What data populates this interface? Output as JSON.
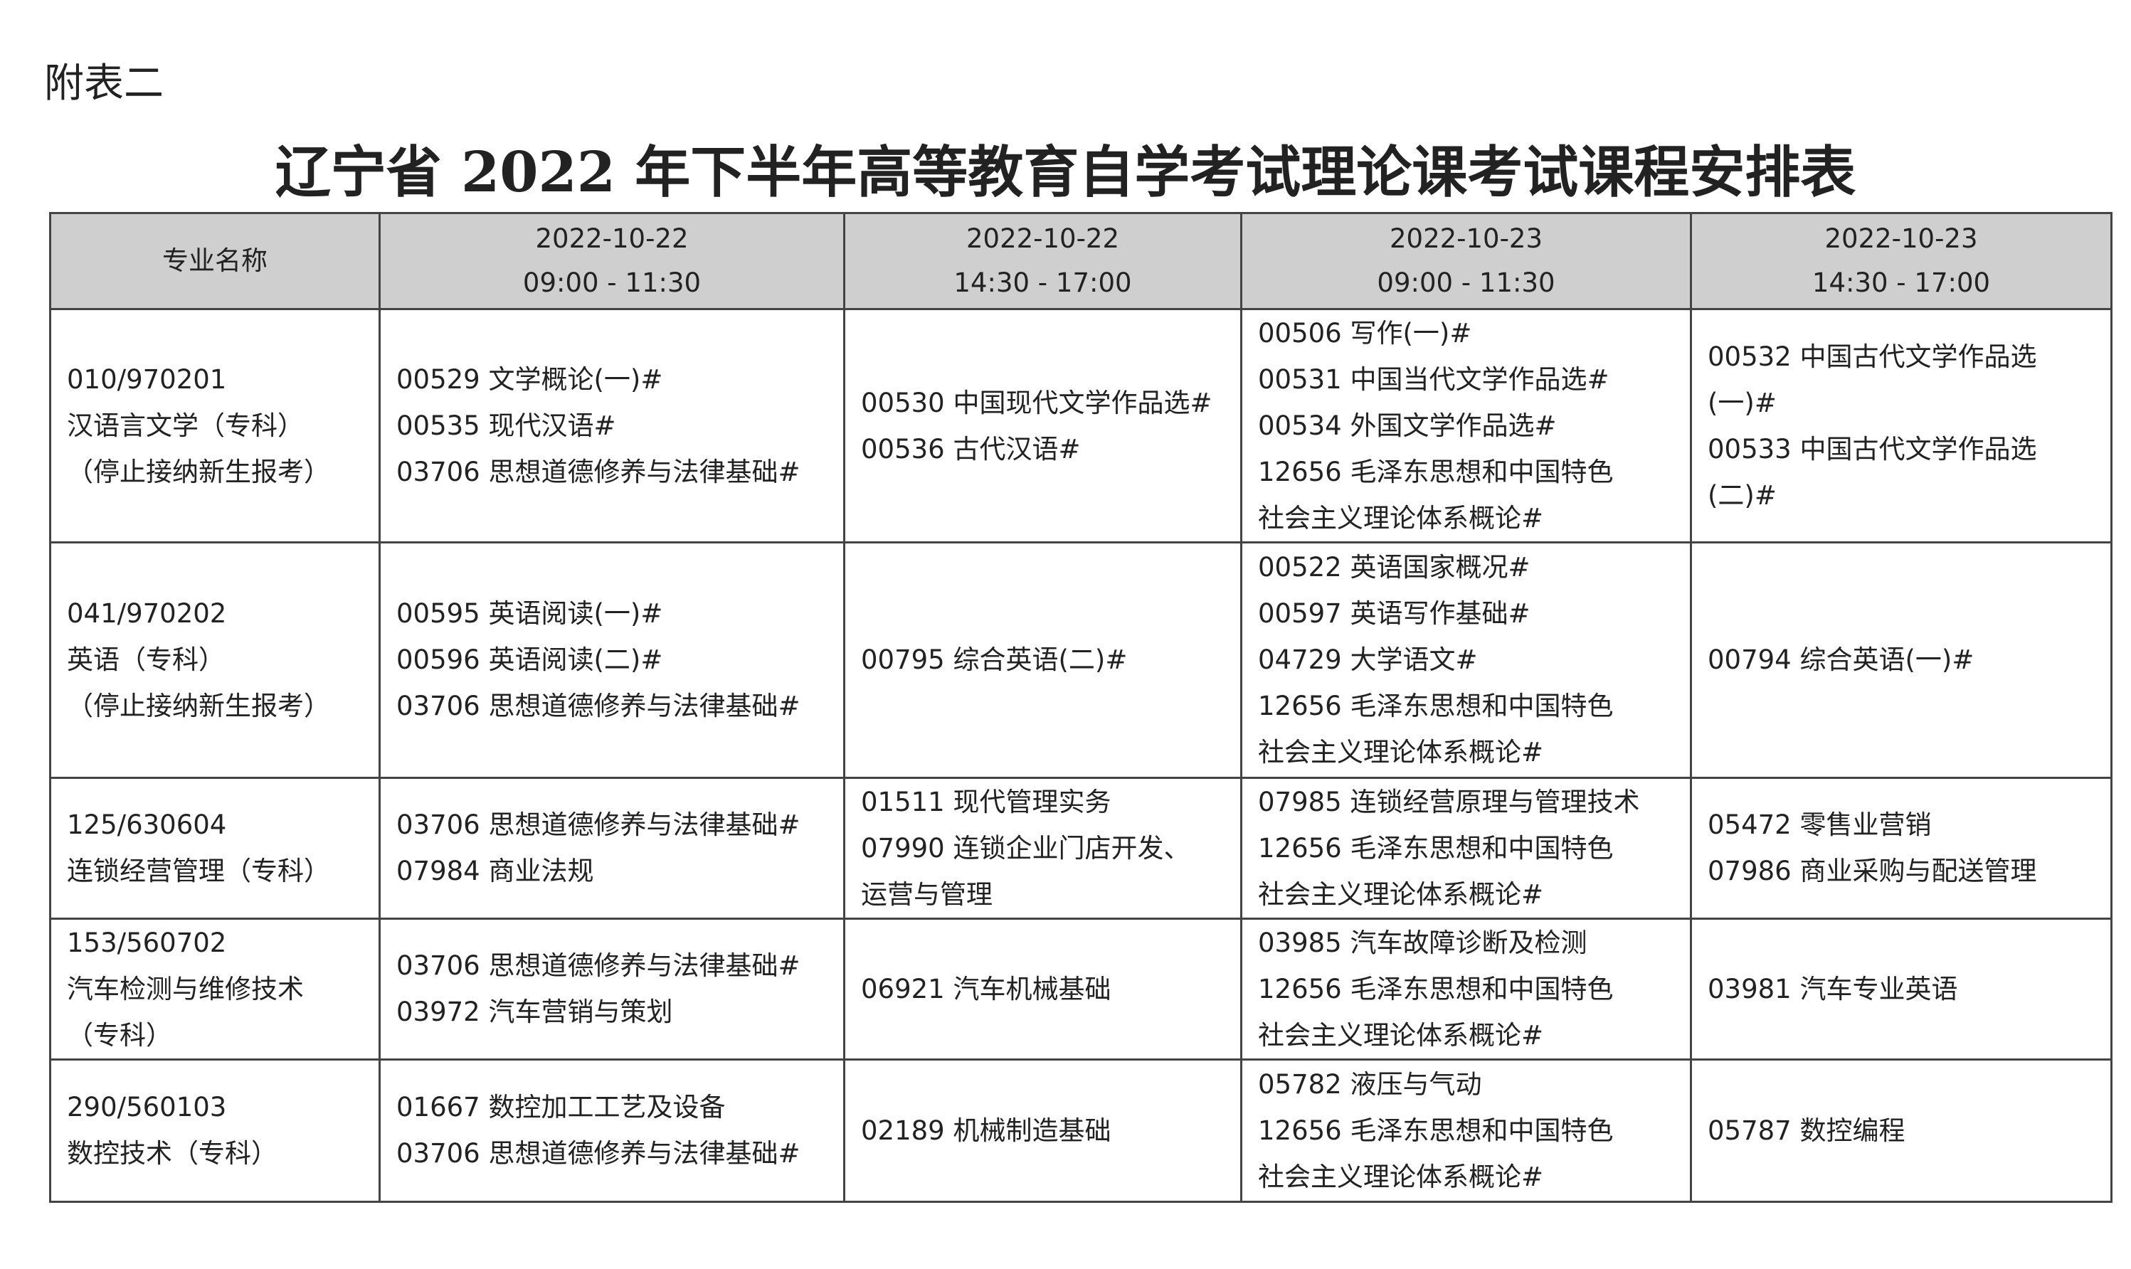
{
  "label": "附表二",
  "title": "辽宁省 2022 年下半年高等教育自学考试理论课考试课程安排表",
  "table": {
    "header": [
      [
        "专业名称"
      ],
      [
        "2022-10-22",
        "09:00 - 11:30"
      ],
      [
        "2022-10-22",
        "14:30 - 17:00"
      ],
      [
        "2022-10-23",
        "09:00 - 11:30"
      ],
      [
        "2022-10-23",
        "14:30 - 17:00"
      ]
    ],
    "rows": [
      [
        [
          "010/970201",
          "汉语言文学（专科）",
          "（停止接纳新生报考）"
        ],
        [
          "00529 文学概论(一)#",
          "00535 现代汉语#",
          "03706 思想道德修养与法律基础#"
        ],
        [
          "00530 中国现代文学作品选#",
          "00536 古代汉语#"
        ],
        [
          "00506 写作(一)#",
          "00531 中国当代文学作品选#",
          "00534 外国文学作品选#",
          "12656 毛泽东思想和中国特色",
          "社会主义理论体系概论#"
        ],
        [
          "00532 中国古代文学作品选",
          "(一)#",
          "00533 中国古代文学作品选",
          "(二)#"
        ]
      ],
      [
        [
          "041/970202",
          "英语（专科）",
          "（停止接纳新生报考）"
        ],
        [
          "00595 英语阅读(一)#",
          "00596 英语阅读(二)#",
          "03706 思想道德修养与法律基础#"
        ],
        [
          "00795 综合英语(二)#"
        ],
        [
          "00522 英语国家概况#",
          "00597 英语写作基础#",
          "04729 大学语文#",
          "12656 毛泽东思想和中国特色",
          "社会主义理论体系概论#"
        ],
        [
          "00794 综合英语(一)#"
        ]
      ],
      [
        [
          "125/630604",
          "连锁经营管理（专科）"
        ],
        [
          "03706 思想道德修养与法律基础#",
          "07984 商业法规"
        ],
        [
          "01511 现代管理实务",
          "07990 连锁企业门店开发、",
          "运营与管理"
        ],
        [
          "07985 连锁经营原理与管理技术",
          "12656 毛泽东思想和中国特色",
          "社会主义理论体系概论#"
        ],
        [
          "05472 零售业营销",
          "07986 商业采购与配送管理"
        ]
      ],
      [
        [
          "153/560702",
          "汽车检测与维修技术",
          "（专科）"
        ],
        [
          "03706 思想道德修养与法律基础#",
          "03972 汽车营销与策划"
        ],
        [
          "06921 汽车机械基础"
        ],
        [
          "03985 汽车故障诊断及检测",
          "12656 毛泽东思想和中国特色",
          "社会主义理论体系概论#"
        ],
        [
          "03981 汽车专业英语"
        ]
      ],
      [
        [
          "290/560103",
          "数控技术（专科）"
        ],
        [
          "01667 数控加工工艺及设备",
          "03706 思想道德修养与法律基础#"
        ],
        [
          "02189 机械制造基础"
        ],
        [
          "05782 液压与气动",
          "12656 毛泽东思想和中国特色",
          "社会主义理论体系概论#"
        ],
        [
          "05787 数控编程"
        ]
      ]
    ]
  }
}
